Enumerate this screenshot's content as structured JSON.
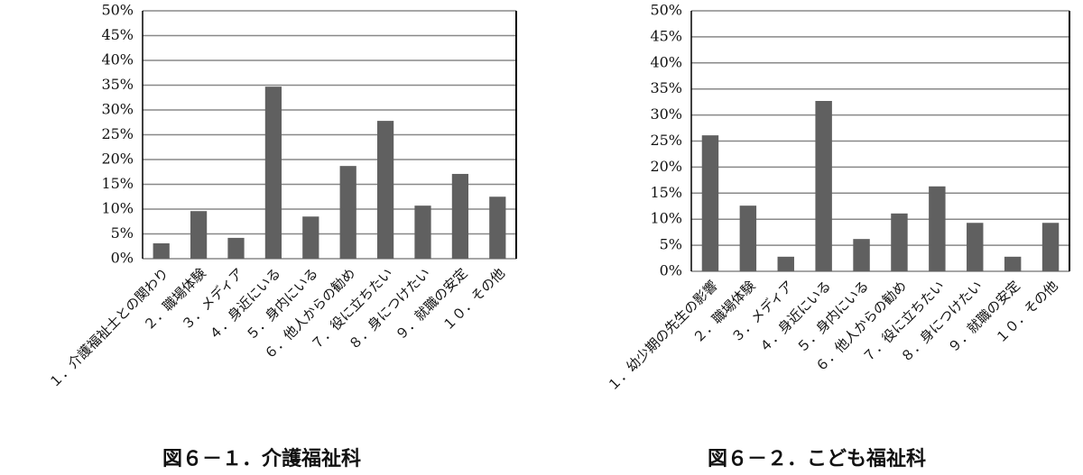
{
  "chart_data": [
    {
      "type": "bar",
      "title": "図６－１．介護福祉科",
      "categories": [
        "１．介護福祉士との関わり",
        "２．職場体験",
        "３．メディア",
        "４．身近にいる",
        "５．身内にいる",
        "６．他人からの勧め",
        "７．役に立ちたい",
        "８．身につけたい",
        "９．就職の安定",
        "１０．その他"
      ],
      "values": [
        3.1,
        9.6,
        4.2,
        34.7,
        8.5,
        18.7,
        27.8,
        10.7,
        17.1,
        12.5
      ],
      "color": "#606060",
      "grid": true,
      "ylim": [
        0,
        50
      ],
      "yticks": [
        {
          "value": 0,
          "label": "0%"
        },
        {
          "value": 5,
          "label": "5%"
        },
        {
          "value": 10,
          "label": "10%"
        },
        {
          "value": 15,
          "label": "15%"
        },
        {
          "value": 20,
          "label": "20%"
        },
        {
          "value": 25,
          "label": "25%"
        },
        {
          "value": 30,
          "label": "30%"
        },
        {
          "value": 35,
          "label": "35%"
        },
        {
          "value": 40,
          "label": "40%"
        },
        {
          "value": 45,
          "label": "45%"
        },
        {
          "value": 50,
          "label": "50%"
        }
      ]
    },
    {
      "type": "bar",
      "title": "図６－２．こども福祉科",
      "categories": [
        "１．幼少期の先生の影響",
        "２．職場体験",
        "３．メディア",
        "４．身近にいる",
        "５．身内にいる",
        "６．他人からの勧め",
        "７．役に立ちたい",
        "８．身につけたい",
        "９．就職の安定",
        "１０．その他"
      ],
      "values": [
        26.1,
        12.6,
        2.8,
        32.7,
        6.2,
        11.1,
        16.3,
        9.3,
        2.8,
        9.3
      ],
      "color": "#606060",
      "grid": true,
      "ylim": [
        0,
        50
      ],
      "yticks": [
        {
          "value": 0,
          "label": "0%"
        },
        {
          "value": 5,
          "label": "5%"
        },
        {
          "value": 10,
          "label": "10%"
        },
        {
          "value": 15,
          "label": "15%"
        },
        {
          "value": 20,
          "label": "20%"
        },
        {
          "value": 25,
          "label": "25%"
        },
        {
          "value": 30,
          "label": "30%"
        },
        {
          "value": 35,
          "label": "35%"
        },
        {
          "value": 40,
          "label": "40%"
        },
        {
          "value": 45,
          "label": "45%"
        },
        {
          "value": 50,
          "label": "50%"
        }
      ]
    }
  ]
}
